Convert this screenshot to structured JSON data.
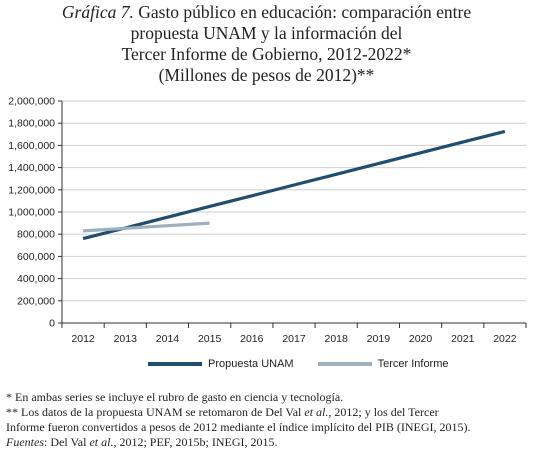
{
  "title": {
    "lead": "Gráfica 7.",
    "line1_rest": "Gasto público en educación: comparación entre",
    "line2": "propuesta UNAM y la información del",
    "line3": "Tercer Informe de Gobierno, 2012-2022*",
    "line4": "(Millones de pesos de 2012)**"
  },
  "chart_data": {
    "type": "line",
    "categories": [
      "2012",
      "2013",
      "2014",
      "2015",
      "2016",
      "2017",
      "2018",
      "2019",
      "2020",
      "2021",
      "2022"
    ],
    "ylim": [
      0,
      2000000
    ],
    "y_ticks": [
      0,
      200000,
      400000,
      600000,
      800000,
      1000000,
      1200000,
      1400000,
      1600000,
      1800000,
      2000000
    ],
    "y_tick_labels": [
      "0",
      "200,000",
      "400,000",
      "600,000",
      "800,000",
      "1,000,000",
      "1,200,000",
      "1,400,000",
      "1,600,000",
      "1,800,000",
      "2,000,000"
    ],
    "grid": "horizontal",
    "legend_position": "bottom",
    "series": [
      {
        "name": "Propuesta UNAM",
        "color": "#1f4e6e",
        "values": [
          760000,
          856000,
          953000,
          1050000,
          1146000,
          1243000,
          1340000,
          1436000,
          1533000,
          1630000,
          1726000
        ]
      },
      {
        "name": "Tercer Informe",
        "color": "#9db0bd",
        "values": [
          830000,
          853000,
          877000,
          900000,
          null,
          null,
          null,
          null,
          null,
          null,
          null
        ]
      }
    ]
  },
  "notes": {
    "n1": "* En ambas series se incluye el rubro de gasto en ciencia y tecnología.",
    "n2a": "** Los datos de la propuesta UNAM se retomaron de Del Val ",
    "n2b": "et al.",
    "n2c": ", 2012; y los del Tercer",
    "n3": "Informe fueron convertidos a pesos de 2012 mediante el índice implícito del PIB (INEGI, 2015).",
    "n4a": "Fuentes",
    "n4b": ": Del Val ",
    "n4c": "et al.",
    "n4d": ", 2012; PEF, 2015b; INEGI, 2015."
  }
}
